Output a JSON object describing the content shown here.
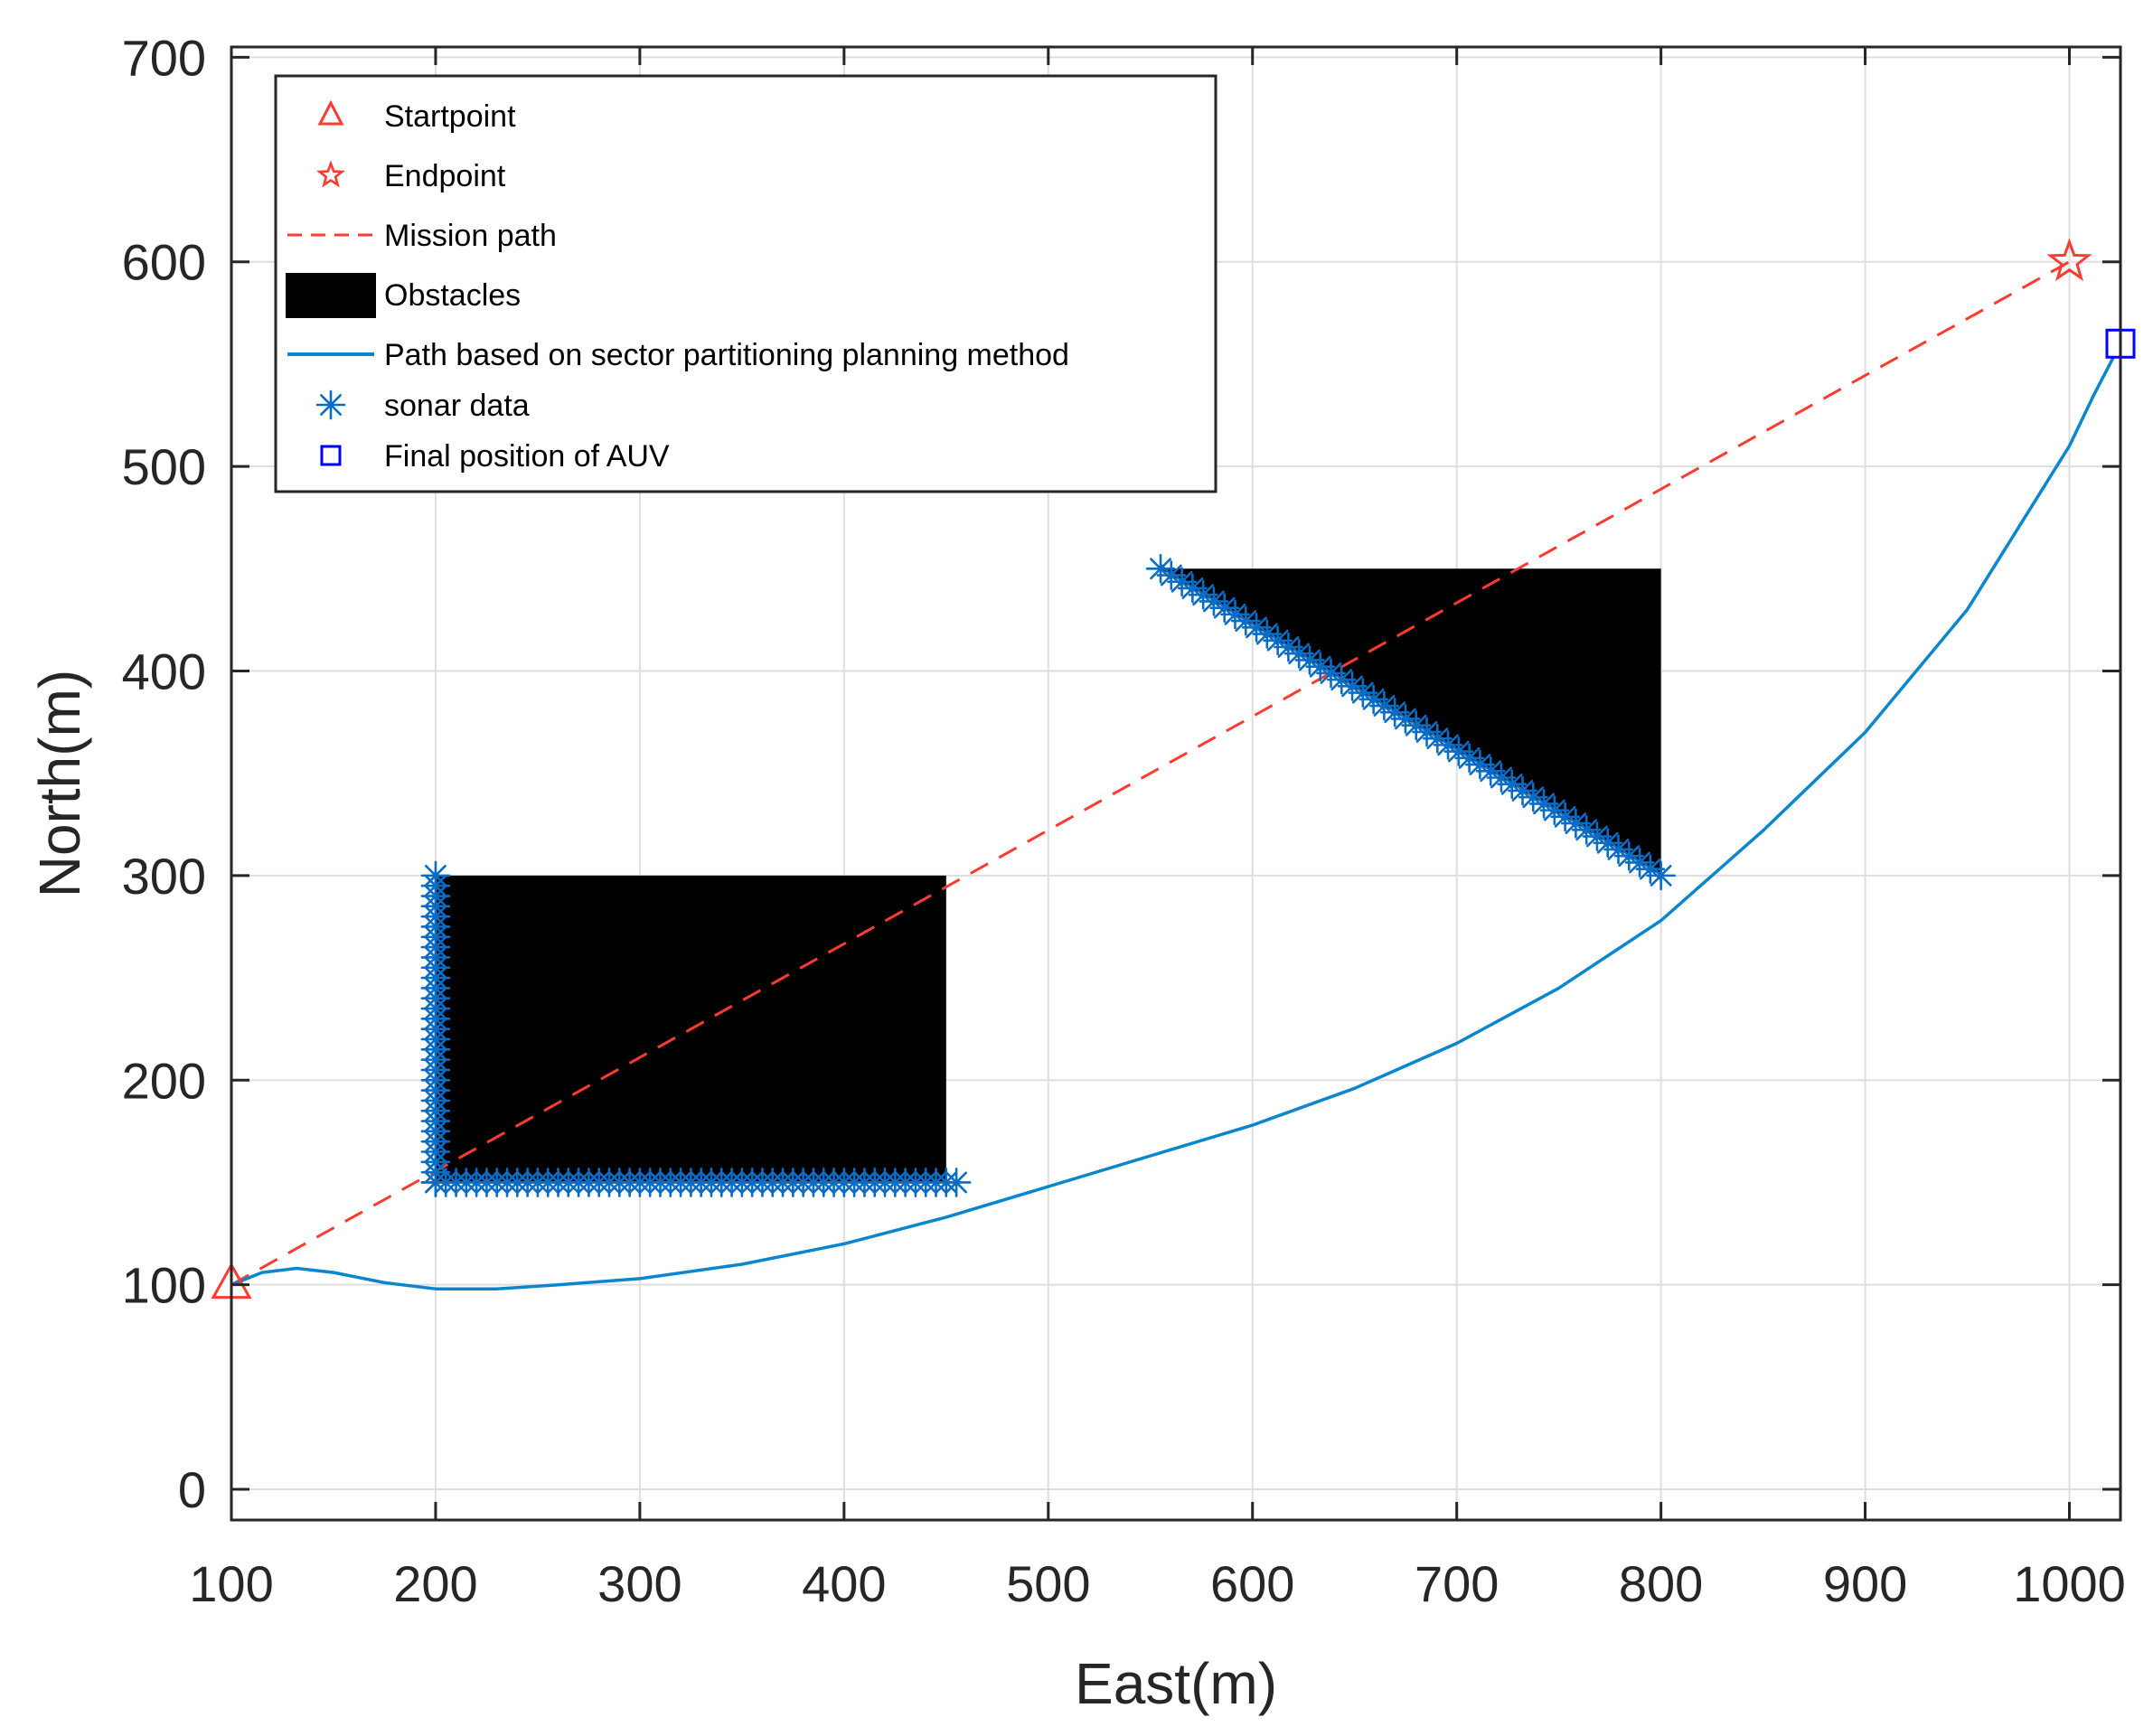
{
  "chart_data": {
    "type": "line",
    "xlabel": "East(m)",
    "ylabel": "North(m)",
    "xlim": [
      100,
      1025
    ],
    "ylim": [
      -15,
      705
    ],
    "xticks": [
      "100",
      "200",
      "300",
      "400",
      "500",
      "600",
      "700",
      "800",
      "900",
      "1000"
    ],
    "yticks": [
      "0",
      "100",
      "200",
      "300",
      "400",
      "500",
      "600",
      "700"
    ],
    "grid": true,
    "legend_position": "top-left",
    "colors": {
      "mission": "#ff3b30",
      "path": "#0a86cf",
      "sonar": "#0a6cc4",
      "obstacle": "#000000",
      "final": "#0000ff"
    },
    "legend": [
      {
        "key": "start",
        "label": "Startpoint"
      },
      {
        "key": "end",
        "label": "Endpoint"
      },
      {
        "key": "mission",
        "label": "Mission path"
      },
      {
        "key": "obstacle",
        "label": "Obstacles"
      },
      {
        "key": "path",
        "label": "Path based on sector partitioning planning method"
      },
      {
        "key": "sonar",
        "label": "sonar data"
      },
      {
        "key": "final",
        "label": "Final position of AUV"
      }
    ],
    "start_point": [
      100,
      100
    ],
    "end_point": [
      1000,
      600
    ],
    "final_position": [
      1025,
      560
    ],
    "mission_path": [
      [
        100,
        100
      ],
      [
        1000,
        600
      ]
    ],
    "obstacles": [
      {
        "shape": "rectangle",
        "vertices": [
          [
            200,
            150
          ],
          [
            450,
            150
          ],
          [
            450,
            300
          ],
          [
            200,
            300
          ]
        ]
      },
      {
        "shape": "triangle",
        "vertices": [
          [
            555,
            450
          ],
          [
            800,
            450
          ],
          [
            800,
            300
          ]
        ]
      }
    ],
    "planned_path": [
      [
        100,
        100
      ],
      [
        115,
        106
      ],
      [
        132,
        108
      ],
      [
        150,
        106
      ],
      [
        175,
        101
      ],
      [
        200,
        98
      ],
      [
        230,
        98
      ],
      [
        260,
        100
      ],
      [
        300,
        103
      ],
      [
        350,
        110
      ],
      [
        400,
        120
      ],
      [
        450,
        133
      ],
      [
        500,
        148
      ],
      [
        550,
        163
      ],
      [
        600,
        178
      ],
      [
        650,
        196
      ],
      [
        700,
        218
      ],
      [
        750,
        245
      ],
      [
        800,
        278
      ],
      [
        850,
        322
      ],
      [
        900,
        370
      ],
      [
        950,
        430
      ],
      [
        980,
        478
      ],
      [
        1000,
        510
      ],
      [
        1012,
        535
      ],
      [
        1025,
        560
      ]
    ],
    "sonar_segments": [
      {
        "from": [
          200,
          150
        ],
        "to": [
          200,
          300
        ],
        "count": 31
      },
      {
        "from": [
          200,
          150
        ],
        "to": [
          455,
          150
        ],
        "count": 52
      },
      {
        "from": [
          555,
          450
        ],
        "to": [
          800,
          300
        ],
        "count": 48
      }
    ]
  }
}
